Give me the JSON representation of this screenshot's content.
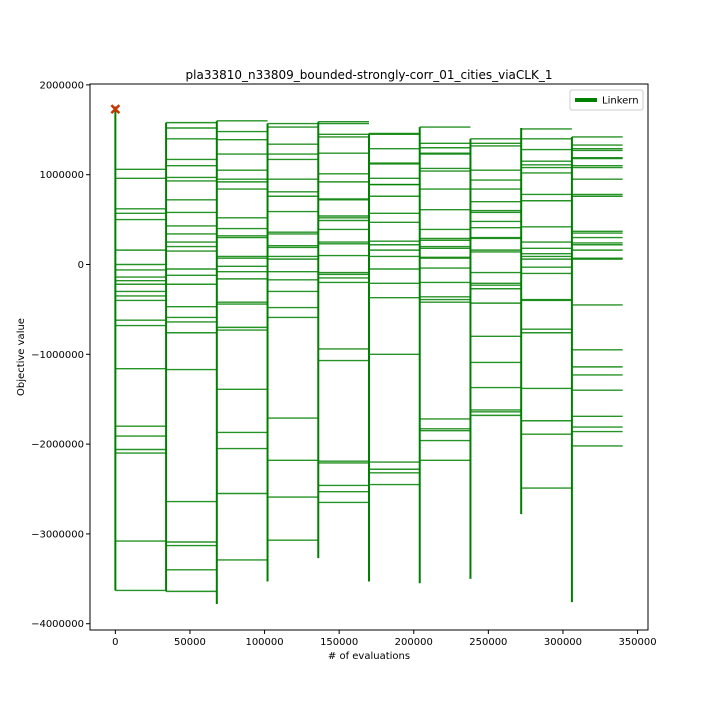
{
  "chart_data": {
    "type": "line",
    "title": "pla33810_n33809_bounded-strongly-corr_01_cities_viaCLK_1",
    "xlabel": "# of evaluations",
    "ylabel": "Objective value",
    "xlim": [
      -17000,
      357000
    ],
    "ylim": [
      -4070000,
      2010000
    ],
    "x_ticks": [
      0,
      50000,
      100000,
      150000,
      200000,
      250000,
      300000,
      350000
    ],
    "x_tick_labels": [
      "0",
      "50000",
      "100000",
      "150000",
      "200000",
      "250000",
      "300000",
      "350000"
    ],
    "y_ticks": [
      2000000,
      1000000,
      0,
      -1000000,
      -2000000,
      -3000000,
      -4000000
    ],
    "y_tick_labels": [
      "2000000",
      "1000000",
      "0",
      "−1000000",
      "−2000000",
      "−3000000",
      "−4000000"
    ],
    "grid": false,
    "legend": {
      "position": "top-right",
      "entries": [
        {
          "name": "Linkern",
          "color": "#008000"
        }
      ]
    },
    "start_marker": {
      "x": 0,
      "y": 1730000,
      "color": "#cc3300",
      "shape": "x"
    },
    "series": [
      {
        "name": "Linkern",
        "color": "#008000",
        "segments": [
          {
            "x_start": 0,
            "x_end": 34000,
            "y_min": -3630000,
            "y_max": 1760000,
            "levels": [
              1060000,
              960000,
              620000,
              570000,
              500000,
              160000,
              0,
              -60000,
              -140000,
              -180000,
              -220000,
              -300000,
              -350000,
              -400000,
              -620000,
              -680000,
              -1160000,
              -1800000,
              -1910000,
              -2060000,
              -2100000,
              -3080000,
              -3630000
            ]
          },
          {
            "x_start": 34000,
            "x_end": 68000,
            "y_min": -3640000,
            "y_max": 1580000,
            "levels": [
              1580000,
              1520000,
              1400000,
              1170000,
              1100000,
              970000,
              930000,
              720000,
              580000,
              430000,
              340000,
              250000,
              200000,
              150000,
              -50000,
              -120000,
              -220000,
              -470000,
              -590000,
              -640000,
              -760000,
              -1170000,
              -2640000,
              -3090000,
              -3130000,
              -3400000,
              -3640000
            ]
          },
          {
            "x_start": 68000,
            "x_end": 102000,
            "y_min": -3780000,
            "y_max": 1600000,
            "levels": [
              1600000,
              1480000,
              1390000,
              1230000,
              1050000,
              950000,
              920000,
              840000,
              520000,
              400000,
              320000,
              300000,
              90000,
              70000,
              -20000,
              -80000,
              -160000,
              -420000,
              -440000,
              -700000,
              -730000,
              -1390000,
              -1870000,
              -2050000,
              -2550000,
              -3290000
            ]
          },
          {
            "x_start": 102000,
            "x_end": 136000,
            "y_min": -3530000,
            "y_max": 1570000,
            "levels": [
              1570000,
              1530000,
              1340000,
              1230000,
              1170000,
              950000,
              810000,
              760000,
              590000,
              360000,
              340000,
              210000,
              190000,
              90000,
              60000,
              -80000,
              -170000,
              -300000,
              -480000,
              -590000,
              -1710000,
              -2180000,
              -2590000,
              -3070000
            ]
          },
          {
            "x_start": 136000,
            "x_end": 170000,
            "y_min": -3270000,
            "y_max": 1590000,
            "levels": [
              1590000,
              1570000,
              1450000,
              1420000,
              1240000,
              1010000,
              920000,
              730000,
              720000,
              540000,
              520000,
              490000,
              390000,
              250000,
              230000,
              100000,
              -90000,
              -110000,
              -150000,
              -200000,
              -940000,
              -1070000,
              -2190000,
              -2210000,
              -2460000,
              -2530000,
              -2650000
            ]
          },
          {
            "x_start": 170000,
            "x_end": 204000,
            "y_min": -3530000,
            "y_max": 1460000,
            "levels": [
              1460000,
              1450000,
              1290000,
              1130000,
              1120000,
              960000,
              890000,
              890000,
              760000,
              570000,
              470000,
              260000,
              220000,
              160000,
              90000,
              -50000,
              -210000,
              -370000,
              -1000000,
              -2200000,
              -2280000,
              -2320000,
              -2450000
            ]
          },
          {
            "x_start": 204000,
            "x_end": 238000,
            "y_min": -3550000,
            "y_max": 1530000,
            "levels": [
              1530000,
              1350000,
              1300000,
              1240000,
              1230000,
              1070000,
              1040000,
              840000,
              610000,
              390000,
              290000,
              270000,
              200000,
              180000,
              80000,
              70000,
              -40000,
              -200000,
              -360000,
              -390000,
              -420000,
              -1720000,
              -1830000,
              -1850000,
              -1960000,
              -2180000
            ]
          },
          {
            "x_start": 238000,
            "x_end": 272000,
            "y_min": -3500000,
            "y_max": 1400000,
            "levels": [
              1400000,
              1350000,
              1320000,
              1050000,
              940000,
              840000,
              700000,
              600000,
              580000,
              480000,
              410000,
              300000,
              290000,
              160000,
              140000,
              -90000,
              -210000,
              -230000,
              -270000,
              -430000,
              -800000,
              -1090000,
              -1370000,
              -1620000,
              -1640000,
              -1680000
            ]
          },
          {
            "x_start": 272000,
            "x_end": 306000,
            "y_min": -2780000,
            "y_max": 1520000,
            "levels": [
              1510000,
              1400000,
              1280000,
              1150000,
              1110000,
              1080000,
              1020000,
              780000,
              710000,
              420000,
              250000,
              180000,
              120000,
              90000,
              60000,
              -30000,
              -100000,
              -390000,
              -400000,
              -720000,
              -760000,
              -1380000,
              -1740000,
              -1890000,
              -2490000
            ]
          },
          {
            "x_start": 306000,
            "x_end": 340000,
            "y_min": -3760000,
            "y_max": 1420000,
            "levels": [
              1420000,
              1330000,
              1290000,
              1270000,
              1190000,
              1180000,
              1100000,
              1080000,
              950000,
              780000,
              760000,
              370000,
              350000,
              300000,
              240000,
              220000,
              160000,
              70000,
              60000,
              -450000,
              -950000,
              -1140000,
              -1230000,
              -1400000,
              -1690000,
              -1810000,
              -1860000,
              -2020000
            ]
          }
        ]
      }
    ]
  }
}
